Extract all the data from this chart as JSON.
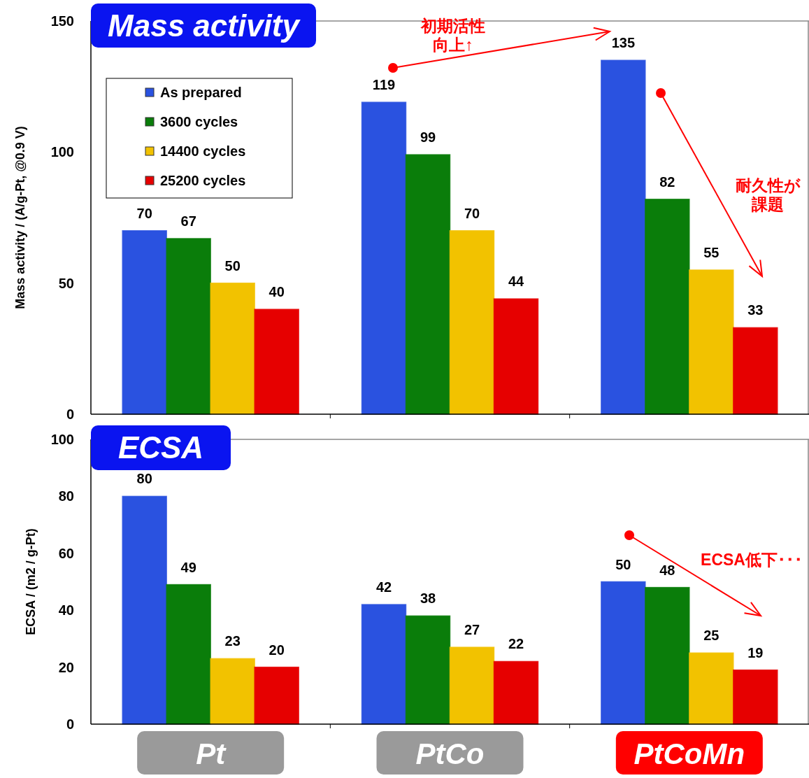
{
  "chart_data": [
    {
      "type": "bar",
      "title": "Mass activity",
      "ylabel": "Mass activity / (A/g-Pt, @0.9 V)",
      "ylim": [
        0,
        150
      ],
      "yticks": [
        0,
        50,
        100,
        150
      ],
      "tick_labels": "y",
      "legend": "top left",
      "data_labels": true,
      "series": [
        {
          "name": "As prepared",
          "color": "#2a52e0",
          "values": [
            70,
            119,
            135
          ]
        },
        {
          "name": "3600 cycles",
          "color": "#0a7d0a",
          "values": [
            67,
            99,
            82
          ]
        },
        {
          "name": "14400 cycles",
          "color": "#f2c200",
          "values": [
            50,
            70,
            55
          ]
        },
        {
          "name": "25200 cycles",
          "color": "#e60000",
          "values": [
            40,
            44,
            33
          ]
        }
      ],
      "annotations": [
        "初期活性",
        "向上↑",
        "耐久性が",
        "課題"
      ]
    },
    {
      "type": "bar",
      "title": "ECSA",
      "categories": [
        "Pt",
        "PtCo",
        "PtCoMn"
      ],
      "ylabel": "ECSA / (m2 / g-Pt)",
      "ylim": [
        0,
        100
      ],
      "yticks": [
        0,
        20,
        40,
        60,
        80,
        100
      ],
      "data_labels": true,
      "series": [
        {
          "color": "#2a52e0",
          "values": [
            80,
            42,
            50
          ]
        },
        {
          "color": "#0a7d0a",
          "values": [
            49,
            38,
            48
          ]
        },
        {
          "color": "#f2c200",
          "values": [
            23,
            27,
            25
          ]
        },
        {
          "color": "#e60000",
          "values": [
            20,
            22,
            19
          ]
        }
      ],
      "annotations": [
        "ECSA低下･･･"
      ]
    }
  ]
}
